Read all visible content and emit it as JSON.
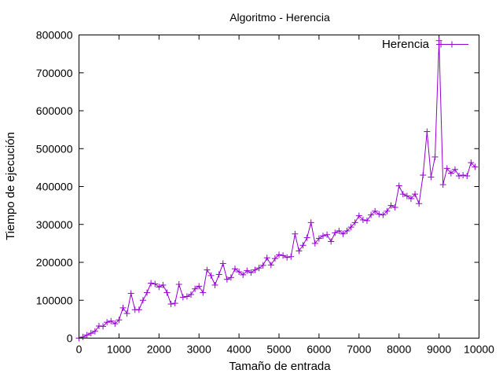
{
  "chart_data": {
    "type": "line",
    "title": "Algoritmo - Herencia",
    "xlabel": "Tamaño de entrada",
    "ylabel": "Tiempo de ejecución",
    "xlim": [
      0,
      10000
    ],
    "ylim": [
      0,
      800000
    ],
    "xticks": [
      0,
      1000,
      2000,
      3000,
      4000,
      5000,
      6000,
      7000,
      8000,
      9000,
      10000
    ],
    "yticks": [
      0,
      100000,
      200000,
      300000,
      400000,
      500000,
      600000,
      700000,
      800000
    ],
    "grid": false,
    "legend_position": "top-right",
    "marker": "plus",
    "series": [
      {
        "name": "Herencia",
        "color": "#9400d3",
        "x": [
          0,
          100,
          200,
          300,
          400,
          500,
          600,
          700,
          800,
          900,
          1000,
          1100,
          1200,
          1300,
          1400,
          1500,
          1600,
          1700,
          1800,
          1900,
          2000,
          2100,
          2200,
          2300,
          2400,
          2500,
          2600,
          2700,
          2800,
          2900,
          3000,
          3100,
          3200,
          3300,
          3400,
          3500,
          3600,
          3700,
          3800,
          3900,
          4000,
          4100,
          4200,
          4300,
          4400,
          4500,
          4600,
          4700,
          4800,
          4900,
          5000,
          5100,
          5200,
          5300,
          5400,
          5500,
          5600,
          5700,
          5800,
          5900,
          6000,
          6100,
          6200,
          6300,
          6400,
          6500,
          6600,
          6700,
          6800,
          6900,
          7000,
          7100,
          7200,
          7300,
          7400,
          7500,
          7600,
          7700,
          7800,
          7900,
          8000,
          8100,
          8200,
          8300,
          8400,
          8500,
          8600,
          8700,
          8800,
          8900,
          9000,
          9100,
          9200,
          9300,
          9400,
          9500,
          9600,
          9700,
          9800,
          9900
        ],
        "y": [
          0,
          3000,
          8000,
          13000,
          18000,
          32000,
          31000,
          42000,
          45000,
          38000,
          48000,
          80000,
          65000,
          118000,
          75000,
          75000,
          100000,
          120000,
          145000,
          143000,
          135000,
          140000,
          120000,
          90000,
          92000,
          142000,
          108000,
          110000,
          115000,
          130000,
          137000,
          120000,
          180000,
          165000,
          140000,
          168000,
          197000,
          155000,
          160000,
          183000,
          175000,
          167000,
          178000,
          173000,
          180000,
          185000,
          192000,
          212000,
          193000,
          210000,
          220000,
          218000,
          213000,
          215000,
          275000,
          230000,
          245000,
          265000,
          305000,
          250000,
          263000,
          270000,
          273000,
          255000,
          278000,
          283000,
          275000,
          283000,
          293000,
          305000,
          323000,
          312000,
          310000,
          325000,
          335000,
          327000,
          325000,
          335000,
          350000,
          345000,
          402000,
          380000,
          375000,
          368000,
          380000,
          355000,
          430000,
          545000,
          425000,
          478000,
          785000,
          405000,
          448000,
          435000,
          445000,
          428000,
          430000,
          428000,
          463000,
          452000
        ]
      }
    ]
  }
}
